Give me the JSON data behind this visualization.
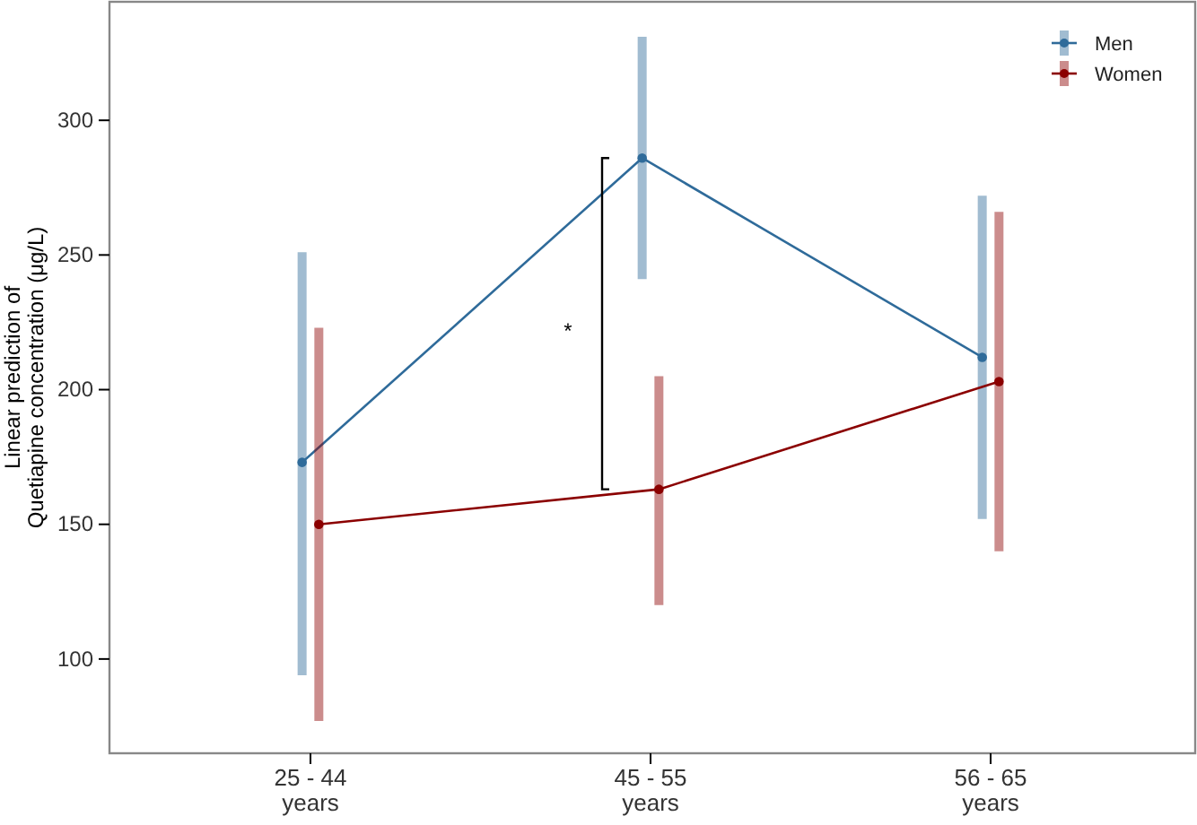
{
  "chart_data": {
    "type": "line",
    "ylabel": "Linear prediction of\nQuetiapine concentration (μg/L)",
    "categories": [
      "25 - 44\nyears",
      "45 - 55\nyears",
      "56 - 65\nyears"
    ],
    "ylim": [
      65,
      344
    ],
    "yticks": [
      100,
      150,
      200,
      250,
      300
    ],
    "series": [
      {
        "name": "Men",
        "color": "#2f6b9a",
        "values": [
          173,
          286,
          212
        ],
        "errors": [
          [
            94,
            251
          ],
          [
            241,
            331
          ],
          [
            152,
            272
          ]
        ]
      },
      {
        "name": "Women",
        "color": "#8b0000",
        "values": [
          150,
          163,
          203
        ],
        "errors": [
          [
            77,
            223
          ],
          [
            120,
            205
          ],
          [
            140,
            266
          ]
        ]
      }
    ],
    "annotations": [
      "*"
    ],
    "grid": false,
    "legend": "top right",
    "marker": "circle",
    "line_style": "solid"
  }
}
